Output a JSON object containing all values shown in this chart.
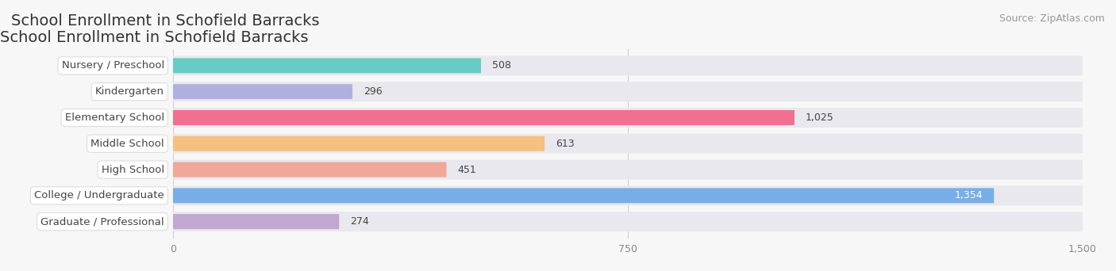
{
  "title": "School Enrollment in Schofield Barracks",
  "source": "Source: ZipAtlas.com",
  "categories": [
    "Nursery / Preschool",
    "Kindergarten",
    "Elementary School",
    "Middle School",
    "High School",
    "College / Undergraduate",
    "Graduate / Professional"
  ],
  "values": [
    508,
    296,
    1025,
    613,
    451,
    1354,
    274
  ],
  "bar_colors": [
    "#68ccc5",
    "#b0b0e0",
    "#f07090",
    "#f5c080",
    "#f0a898",
    "#78aee8",
    "#c0a8d0"
  ],
  "bar_bg_color": "#e8e8ee",
  "xlim": [
    0,
    1500
  ],
  "xticks": [
    0,
    750,
    1500
  ],
  "xtick_labels": [
    "0",
    "750",
    "1,500"
  ],
  "background_color": "#f7f7f7",
  "title_fontsize": 14,
  "label_fontsize": 9.5,
  "value_fontsize": 9,
  "source_fontsize": 9,
  "value_threshold_white": 1200
}
